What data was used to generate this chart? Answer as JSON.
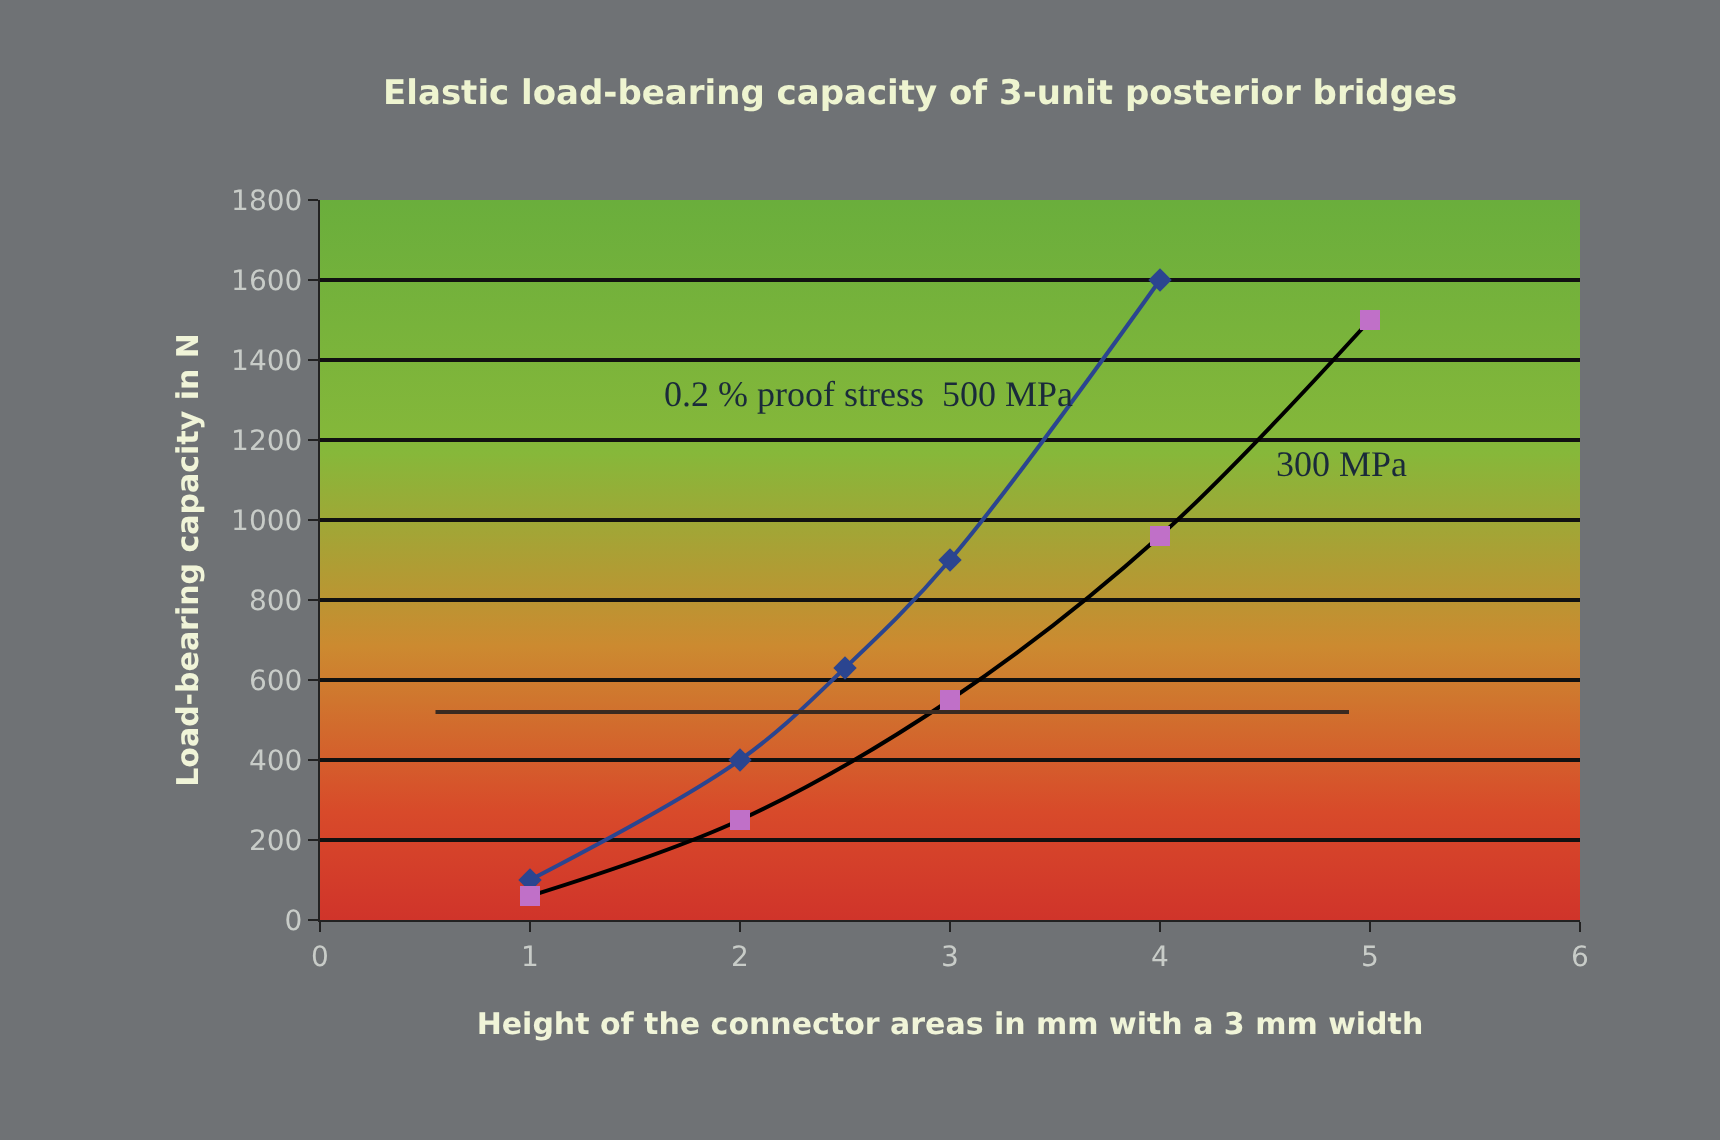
{
  "chart_data": {
    "type": "line",
    "title": "Elastic load-bearing capacity of 3-unit posterior bridges",
    "xlabel": "Height of the connector areas in mm with a 3 mm width",
    "ylabel": "Load-bearing capacity in N",
    "series": [
      {
        "color": "#2b4590",
        "marker": "diamond",
        "x": [
          1,
          2,
          2.5,
          3,
          4
        ],
        "values": [
          100,
          400,
          630,
          900,
          1600
        ]
      },
      {
        "color": "#000000",
        "marker": "none",
        "x": [
          1,
          2,
          3,
          4,
          5
        ],
        "values": [
          60,
          250,
          550,
          960,
          1500
        ]
      },
      {
        "type": "scatter",
        "color": "#c070c8",
        "marker": "square",
        "x": [
          1,
          2,
          3,
          4,
          5
        ],
        "values": [
          60,
          250,
          550,
          960,
          1500
        ]
      },
      {
        "color": "#3a2a20",
        "marker": "none",
        "x": [
          0.55,
          4.9
        ],
        "values": [
          520,
          520
        ]
      }
    ],
    "annotations": [
      "0.2 % proof stress  500 MPa",
      "300 MPa"
    ],
    "xlim": [
      0,
      6
    ],
    "xticks": [
      0,
      1,
      2,
      3,
      4,
      5,
      6
    ],
    "ylim": [
      0,
      1800
    ],
    "yticks": [
      0,
      200,
      400,
      600,
      800,
      1000,
      1200,
      1400,
      1600,
      1800
    ],
    "grid": "y"
  }
}
